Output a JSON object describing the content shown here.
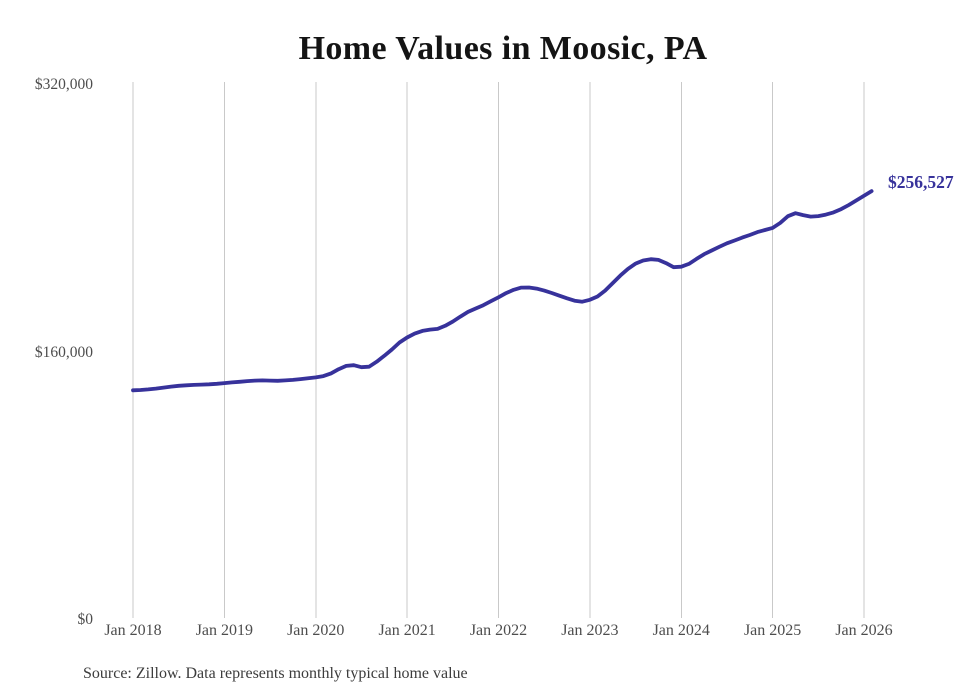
{
  "chart_data": {
    "type": "line",
    "title": "Home Values in Moosic, PA",
    "source": "Source: Zillow. Data represents monthly typical home value",
    "latest_value_label": "$256,527",
    "latest_value": 256527,
    "line_color": "#37329b",
    "gridline_color": "#c9c9c9",
    "grid": "vertical-only",
    "legend": "none",
    "ylim": [
      0,
      320000
    ],
    "y_ticks": [
      {
        "value": 0,
        "label": "$0"
      },
      {
        "value": 160000,
        "label": "$160,000"
      },
      {
        "value": 320000,
        "label": "$320,000"
      }
    ],
    "x_ticks": [
      "Jan 2018",
      "Jan 2019",
      "Jan 2020",
      "Jan 2021",
      "Jan 2022",
      "Jan 2023",
      "Jan 2024",
      "Jan 2025",
      "Jan 2026"
    ],
    "series": [
      {
        "name": "Typical home value (monthly)",
        "months": [
          "2018-01",
          "2018-02",
          "2018-03",
          "2018-04",
          "2018-05",
          "2018-06",
          "2018-07",
          "2018-08",
          "2018-09",
          "2018-10",
          "2018-11",
          "2018-12",
          "2019-01",
          "2019-02",
          "2019-03",
          "2019-04",
          "2019-05",
          "2019-06",
          "2019-07",
          "2019-08",
          "2019-09",
          "2019-10",
          "2019-11",
          "2019-12",
          "2020-01",
          "2020-02",
          "2020-03",
          "2020-04",
          "2020-05",
          "2020-06",
          "2020-07",
          "2020-08",
          "2020-09",
          "2020-10",
          "2020-11",
          "2020-12",
          "2021-01",
          "2021-02",
          "2021-03",
          "2021-04",
          "2021-05",
          "2021-06",
          "2021-07",
          "2021-08",
          "2021-09",
          "2021-10",
          "2021-11",
          "2021-12",
          "2022-01",
          "2022-02",
          "2022-03",
          "2022-04",
          "2022-05",
          "2022-06",
          "2022-07",
          "2022-08",
          "2022-09",
          "2022-10",
          "2022-11",
          "2022-12",
          "2023-01",
          "2023-02",
          "2023-03",
          "2023-04",
          "2023-05",
          "2023-06",
          "2023-07",
          "2023-08",
          "2023-09",
          "2023-10",
          "2023-11",
          "2023-12",
          "2024-01",
          "2024-02",
          "2024-03",
          "2024-04",
          "2024-05",
          "2024-06",
          "2024-07",
          "2024-08",
          "2024-09",
          "2024-10",
          "2024-11",
          "2024-12",
          "2025-01",
          "2025-02",
          "2025-03",
          "2025-04",
          "2025-05",
          "2025-06",
          "2025-07",
          "2025-08",
          "2025-09",
          "2025-10",
          "2025-11",
          "2025-12",
          "2026-01",
          "2026-02"
        ],
        "values": [
          137400,
          137600,
          137900,
          138400,
          139000,
          139600,
          140100,
          140400,
          140600,
          140800,
          141000,
          141300,
          141700,
          142100,
          142500,
          142900,
          143200,
          143300,
          143200,
          143100,
          143300,
          143600,
          144100,
          144600,
          145100,
          145900,
          147500,
          150000,
          152000,
          152400,
          151200,
          151500,
          154500,
          158000,
          161800,
          166000,
          169000,
          171300,
          172900,
          173700,
          174100,
          176000,
          178500,
          181500,
          184300,
          186300,
          188300,
          190700,
          193000,
          195500,
          197500,
          198800,
          198900,
          198200,
          197000,
          195600,
          194000,
          192400,
          191000,
          190400,
          191500,
          193500,
          197000,
          201500,
          206000,
          210000,
          213200,
          215000,
          215800,
          215400,
          213500,
          211000,
          211300,
          213000,
          216000,
          218800,
          221000,
          223200,
          225300,
          227000,
          228700,
          230300,
          232000,
          233300,
          234500,
          237500,
          241500,
          243300,
          242200,
          241300,
          241600,
          242500,
          243800,
          245800,
          248200,
          251000,
          253700,
          256527
        ]
      }
    ]
  }
}
